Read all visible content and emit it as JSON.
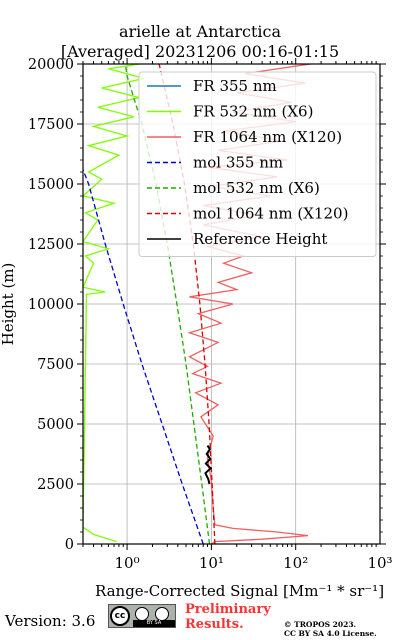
{
  "header": {
    "title_line1": "arielle at Antarctica",
    "title_line2": "[Averaged] 20231206 00:16-01:15"
  },
  "chart_data": {
    "type": "line",
    "xscale": "log",
    "xlim": [
      0.3,
      1000
    ],
    "ylim": [
      0,
      20000
    ],
    "xlabel": "Range-Corrected Signal [Mm⁻¹ * sr⁻¹]",
    "ylabel": "Height (m)",
    "x_ticks": [
      {
        "v": 1,
        "label": "10⁰"
      },
      {
        "v": 10,
        "label": "10¹"
      },
      {
        "v": 100,
        "label": "10²"
      },
      {
        "v": 1000,
        "label": "10³"
      }
    ],
    "y_ticks": [
      0,
      2500,
      5000,
      7500,
      10000,
      12500,
      15000,
      17500,
      20000
    ],
    "grid": true,
    "legend_position": "top-right",
    "series": [
      {
        "name": "FR 355 nm",
        "color": "#1f77b4",
        "style": "solid",
        "points": []
      },
      {
        "name": "FR 532 nm (X6)",
        "color": "#7fff00",
        "style": "solid",
        "points": [
          [
            0.75,
            100
          ],
          [
            0.4,
            400
          ],
          [
            0.3,
            700
          ],
          [
            0.33,
            10400
          ],
          [
            0.55,
            10500
          ],
          [
            0.3,
            10700
          ],
          [
            0.4,
            11700
          ],
          [
            0.32,
            12000
          ],
          [
            0.6,
            12300
          ],
          [
            0.3,
            12600
          ],
          [
            0.45,
            13500
          ],
          [
            0.32,
            13800
          ],
          [
            0.7,
            14200
          ],
          [
            0.3,
            14500
          ],
          [
            0.5,
            15200
          ],
          [
            0.35,
            15500
          ],
          [
            0.8,
            16200
          ],
          [
            0.35,
            16600
          ],
          [
            1.0,
            17000
          ],
          [
            0.4,
            17400
          ],
          [
            1.2,
            17800
          ],
          [
            0.45,
            18200
          ],
          [
            1.4,
            18600
          ],
          [
            0.5,
            19000
          ],
          [
            1.6,
            19400
          ],
          [
            0.6,
            19800
          ],
          [
            1.4,
            20000
          ]
        ]
      },
      {
        "name": "FR 1064 nm (X120)",
        "color": "#f06060",
        "style": "solid",
        "points": [
          [
            10,
            0
          ],
          [
            11,
            100
          ],
          [
            40,
            200
          ],
          [
            140,
            350
          ],
          [
            60,
            500
          ],
          [
            18,
            650
          ],
          [
            11,
            800
          ],
          [
            10.5,
            1500
          ],
          [
            10,
            2600
          ],
          [
            9,
            3600
          ],
          [
            10.5,
            4500
          ],
          [
            7.5,
            5300
          ],
          [
            12,
            5800
          ],
          [
            6.5,
            6300
          ],
          [
            13,
            6700
          ],
          [
            6,
            7100
          ],
          [
            9,
            7400
          ],
          [
            5.5,
            7800
          ],
          [
            12,
            8400
          ],
          [
            5.5,
            8800
          ],
          [
            13,
            9200
          ],
          [
            7,
            9600
          ],
          [
            18,
            10000
          ],
          [
            5.5,
            10300
          ],
          [
            20,
            10600
          ],
          [
            12,
            10900
          ],
          [
            30,
            11300
          ],
          [
            14,
            11700
          ],
          [
            24,
            12000
          ],
          [
            9,
            12400
          ],
          [
            40,
            12800
          ],
          [
            8,
            13300
          ],
          [
            35,
            13700
          ],
          [
            8,
            14100
          ],
          [
            50,
            14500
          ],
          [
            10,
            14900
          ],
          [
            60,
            15300
          ],
          [
            9,
            15700
          ],
          [
            80,
            16000
          ],
          [
            12,
            16400
          ],
          [
            70,
            16800
          ],
          [
            14,
            17200
          ],
          [
            100,
            17600
          ],
          [
            18,
            18000
          ],
          [
            90,
            18400
          ],
          [
            20,
            18800
          ],
          [
            130,
            19200
          ],
          [
            25,
            19600
          ],
          [
            150,
            20000
          ]
        ]
      },
      {
        "name": "mol 355 nm",
        "color": "#0000cc",
        "style": "dashed",
        "points": [
          [
            8,
            0
          ],
          [
            4.5,
            2500
          ],
          [
            2.6,
            5000
          ],
          [
            1.5,
            7500
          ],
          [
            0.9,
            10000
          ],
          [
            0.55,
            12500
          ],
          [
            0.35,
            15000
          ],
          [
            0.3,
            15600
          ]
        ]
      },
      {
        "name": "mol 532 nm (X6)",
        "color": "#22aa00",
        "style": "dashed",
        "points": [
          [
            9.5,
            0
          ],
          [
            7.7,
            2500
          ],
          [
            6.2,
            5000
          ],
          [
            5,
            7500
          ],
          [
            3.9,
            10000
          ],
          [
            3,
            12500
          ],
          [
            2.2,
            15000
          ],
          [
            1.5,
            17500
          ],
          [
            1.0,
            19500
          ],
          [
            0.95,
            20000
          ]
        ]
      },
      {
        "name": "mol 1064 nm (X120)",
        "color": "#dd0000",
        "style": "dashed",
        "points": [
          [
            11,
            0
          ],
          [
            10.2,
            2500
          ],
          [
            9.4,
            5000
          ],
          [
            8.4,
            7500
          ],
          [
            7.3,
            10000
          ],
          [
            6.1,
            12500
          ],
          [
            4.8,
            15000
          ],
          [
            3.5,
            17500
          ],
          [
            2.4,
            20000
          ]
        ]
      },
      {
        "name": "Reference Height",
        "color": "#000000",
        "style": "solid",
        "points": [
          [
            9.5,
            2500
          ],
          [
            9.2,
            2700
          ],
          [
            8.5,
            2950
          ],
          [
            9.8,
            3150
          ],
          [
            8.6,
            3350
          ],
          [
            9.7,
            3550
          ],
          [
            8.8,
            3750
          ],
          [
            9.6,
            3950
          ],
          [
            9.0,
            4100
          ]
        ]
      }
    ]
  },
  "footer": {
    "version": "Version: 3.6",
    "license_badge": "BY SA",
    "preliminary_line1": "Preliminary",
    "preliminary_line2": "Results.",
    "copyright_line1": "© TROPOS 2023.",
    "copyright_line2": "CC BY SA 4.0 License."
  }
}
